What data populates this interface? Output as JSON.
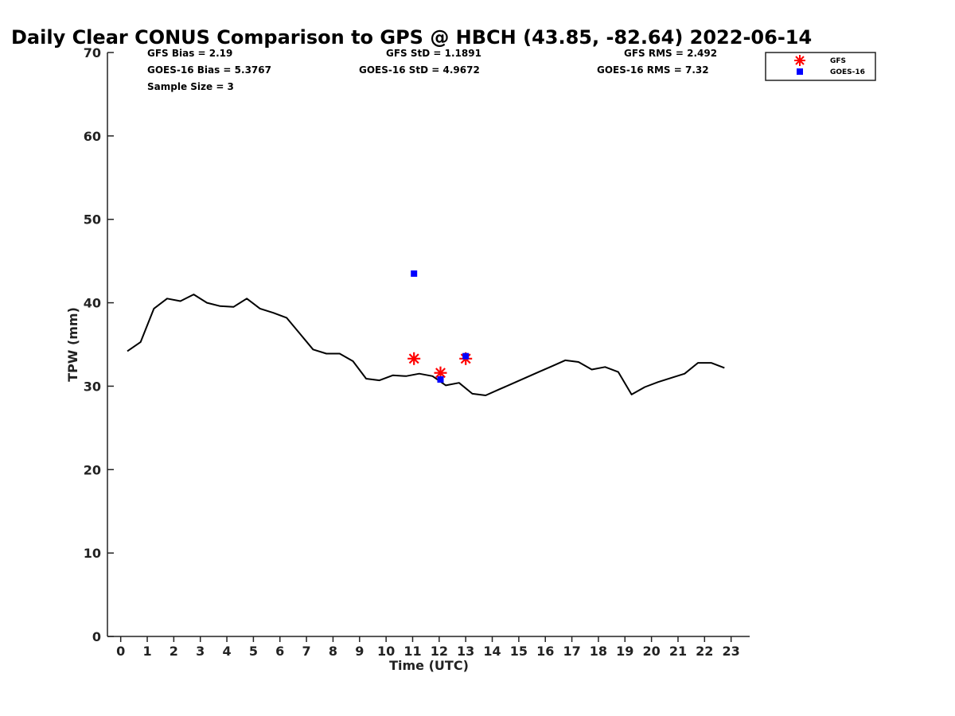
{
  "chart_data": {
    "type": "line",
    "title": "Daily Clear CONUS Comparison to GPS @ HBCH (43.85, -82.64) 2022-06-14",
    "xlabel": "Time (UTC)",
    "ylabel": "TPW (mm)",
    "xlim": [
      -0.5,
      23.7
    ],
    "ylim": [
      0,
      70
    ],
    "x_ticks": [
      "0",
      "1",
      "2",
      "3",
      "4",
      "5",
      "6",
      "7",
      "8",
      "9",
      "10",
      "11",
      "12",
      "13",
      "14",
      "15",
      "16",
      "17",
      "18",
      "19",
      "20",
      "21",
      "22",
      "23"
    ],
    "y_ticks": [
      "0",
      "10",
      "20",
      "30",
      "40",
      "50",
      "60",
      "70"
    ],
    "grid": false,
    "stats": {
      "gfs_bias": "GFS Bias = 2.19",
      "gfs_std": "GFS StD = 1.1891",
      "gfs_rms": "GFS RMS = 2.492",
      "goes_bias": "GOES-16 Bias = 5.3767",
      "goes_std": "GOES-16 StD = 4.9672",
      "goes_rms": "GOES-16 RMS = 7.32",
      "sample_size": "Sample Size = 3"
    },
    "legend": {
      "placement": "top-right",
      "entries": [
        "GFS",
        "GOES-16"
      ]
    },
    "series": [
      {
        "style": "line",
        "color": "#000000",
        "x": [
          0.25,
          0.75,
          1.25,
          1.75,
          2.25,
          2.75,
          3.25,
          3.75,
          4.25,
          4.75,
          5.25,
          5.75,
          6.25,
          6.75,
          7.25,
          7.75,
          8.25,
          8.75,
          9.25,
          9.75,
          10.25,
          10.75,
          11.25,
          11.75,
          12.25,
          12.75,
          13.25,
          13.75,
          14.25,
          14.75,
          15.25,
          15.75,
          16.25,
          16.75,
          17.25,
          17.75,
          18.25,
          18.75,
          19.25,
          19.75,
          20.25,
          20.75,
          21.25,
          21.75,
          22.25,
          22.75
        ],
        "y": [
          34.2,
          35.3,
          39.3,
          40.5,
          40.2,
          41.0,
          40.0,
          39.6,
          39.5,
          40.5,
          39.3,
          38.8,
          38.2,
          36.3,
          34.4,
          33.9,
          33.9,
          33.0,
          30.9,
          30.7,
          31.3,
          31.2,
          31.5,
          31.2,
          30.1,
          30.4,
          29.1,
          28.9,
          29.6,
          30.3,
          31.0,
          31.7,
          32.4,
          33.1,
          32.9,
          32.0,
          32.3,
          31.7,
          29.0,
          29.9,
          30.5,
          31.0,
          31.5,
          32.8,
          32.8,
          32.2
        ]
      },
      {
        "name": "GFS",
        "style": "star",
        "color": "#ff0000",
        "x": [
          11.05,
          12.05,
          13.0
        ],
        "y": [
          33.3,
          31.6,
          33.3
        ]
      },
      {
        "name": "GOES-16",
        "style": "square",
        "color": "#0000ff",
        "x": [
          11.05,
          12.05,
          13.0
        ],
        "y": [
          43.5,
          30.8,
          33.6
        ]
      }
    ]
  }
}
